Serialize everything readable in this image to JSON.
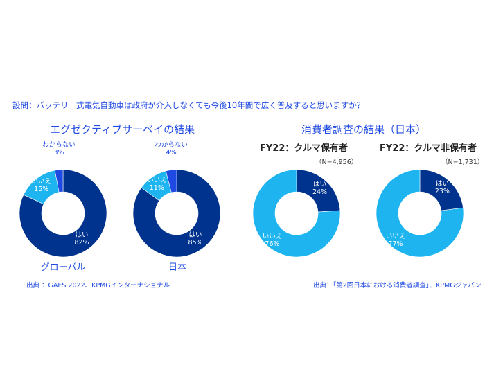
{
  "question": "設問：バッテリー式電気自動車は政府が介入しなくても今後10年間で広く普及すると思いますか？",
  "colors": {
    "yes": "#00338D",
    "no": "#1EB4F0",
    "unknown": "#1E49E2",
    "text": "#1E49E2"
  },
  "chart_data": [
    {
      "type": "pie",
      "donut": true,
      "group": "エグゼクティブサーベイの結果",
      "label": "グローバル",
      "slices": [
        {
          "name": "はい",
          "value": 82
        },
        {
          "name": "いいえ",
          "value": 15
        },
        {
          "name": "わからない",
          "value": 3
        }
      ]
    },
    {
      "type": "pie",
      "donut": true,
      "group": "エグゼクティブサーベイの結果",
      "label": "日本",
      "slices": [
        {
          "name": "はい",
          "value": 85
        },
        {
          "name": "いいえ",
          "value": 11
        },
        {
          "name": "わからない",
          "value": 4
        }
      ]
    },
    {
      "type": "pie",
      "donut": true,
      "group": "消費者調査の結果（日本）",
      "title": "FY22：クルマ保有者",
      "n": "（N=4,956）",
      "slices": [
        {
          "name": "はい",
          "value": 24
        },
        {
          "name": "いいえ",
          "value": 76
        }
      ]
    },
    {
      "type": "pie",
      "donut": true,
      "group": "消費者調査の結果（日本）",
      "title": "FY22：クルマ非保有者",
      "n": "（N=1,731）",
      "slices": [
        {
          "name": "はい",
          "value": 23
        },
        {
          "name": "いいえ",
          "value": 77
        }
      ]
    }
  ],
  "sections": {
    "executive": "エグゼクティブサーベイの結果",
    "consumer": "消費者調査の結果（日本）"
  },
  "sources": {
    "executive": "出典 ：GAES 2022、KPMGインターナショナル",
    "consumer": "出典：「第2回日本における消費者調査」、KPMGジャパン"
  }
}
